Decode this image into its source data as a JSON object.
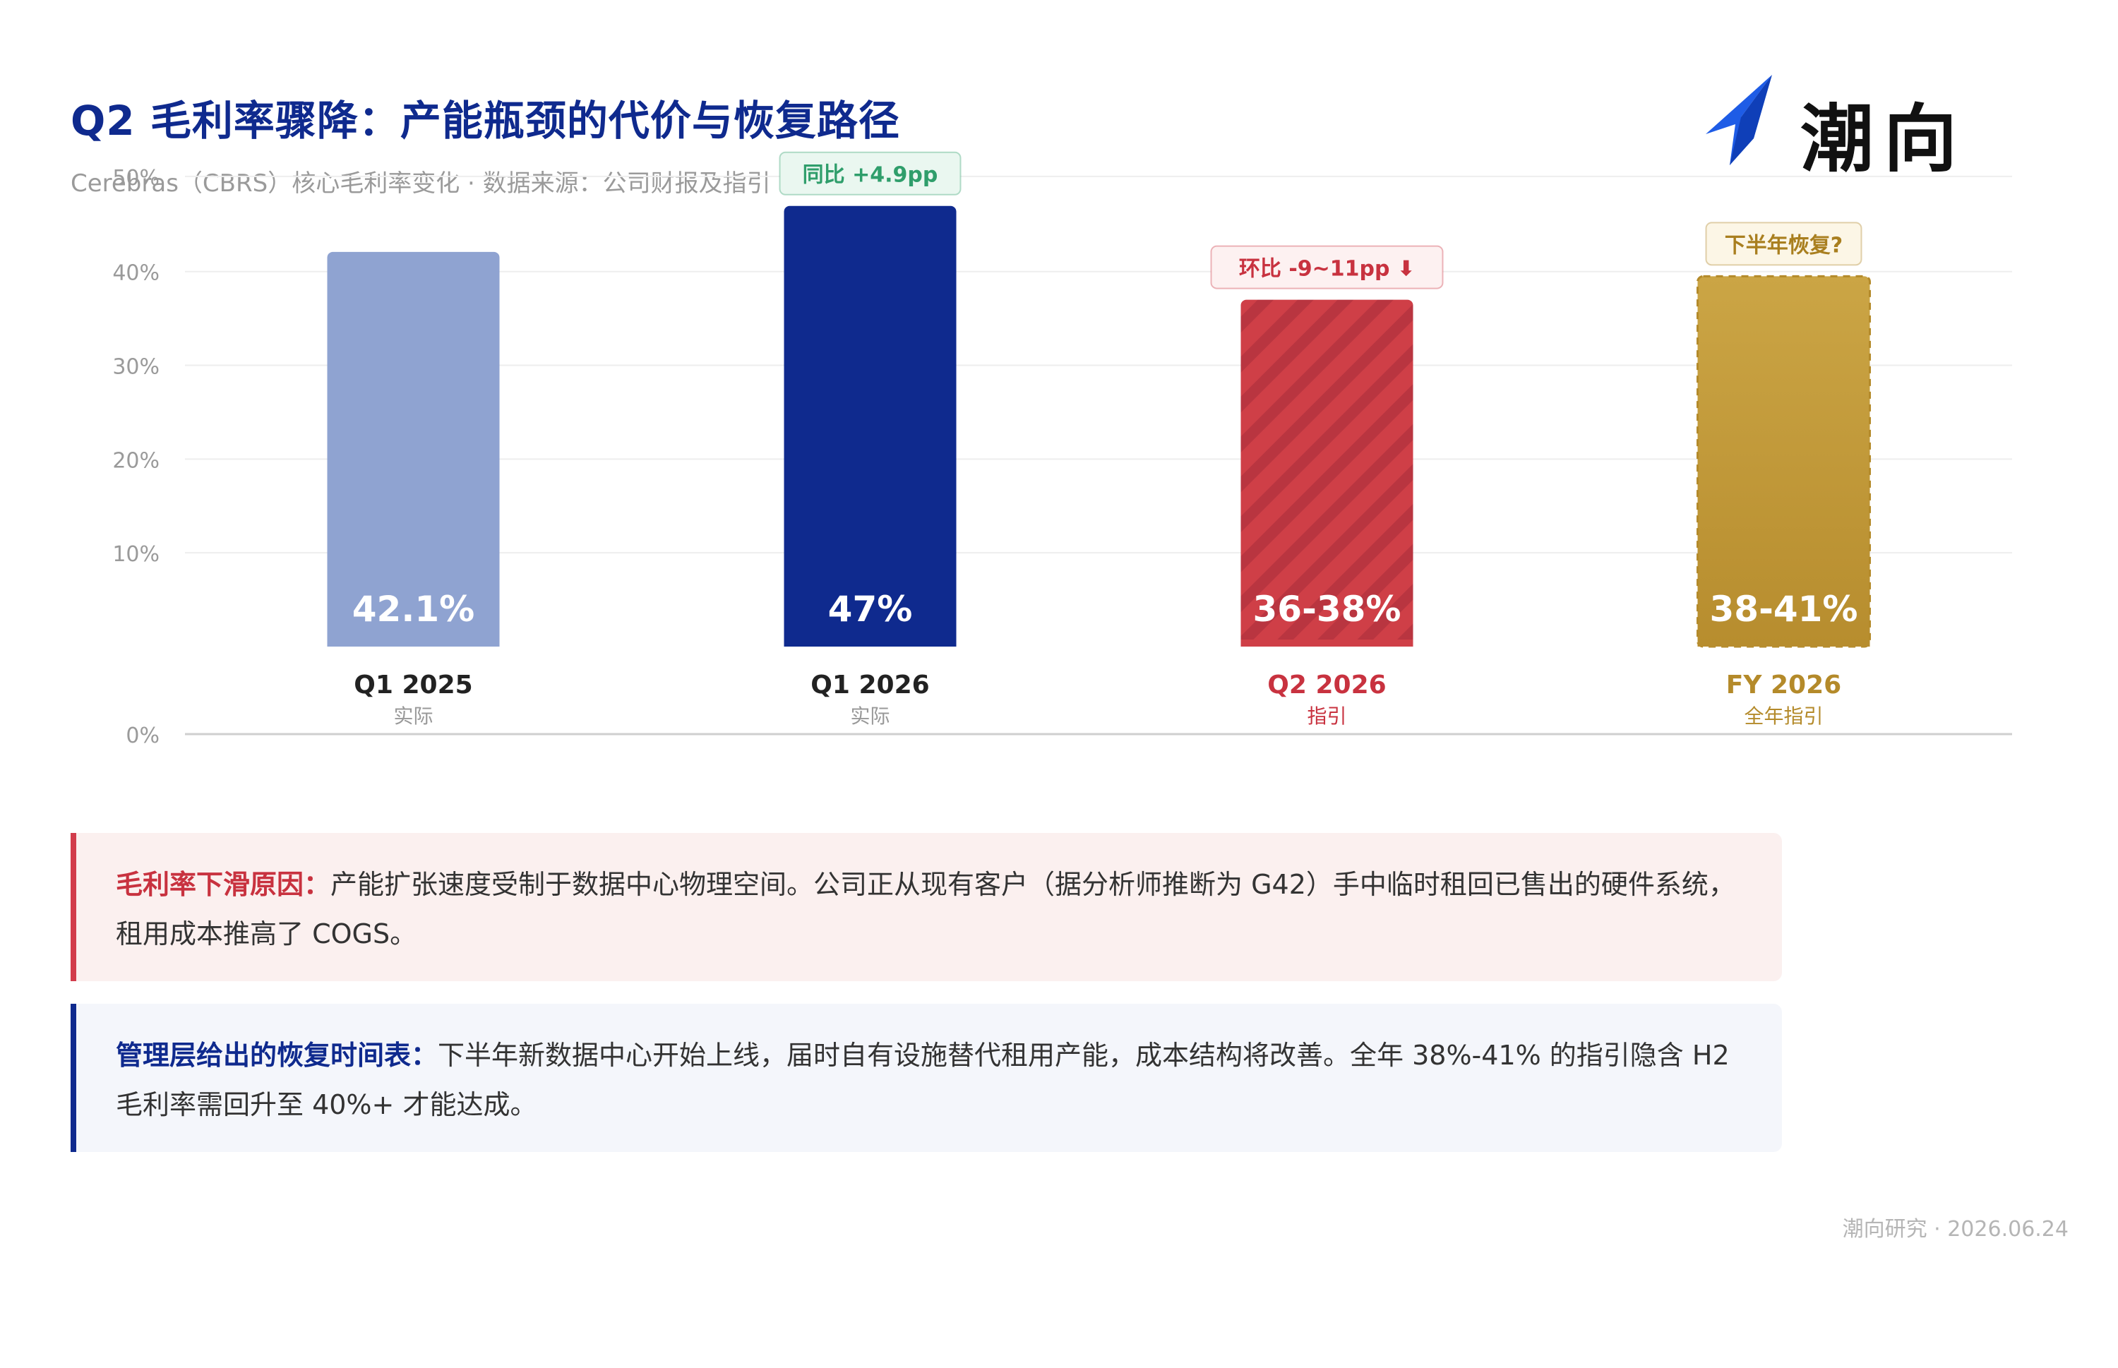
{
  "header": {
    "title": "Q2 毛利率骤降：产能瓶颈的代价与恢复路径",
    "subtitle": "Cerebras（CBRS）核心毛利率变化 · 数据来源：公司财报及指引"
  },
  "brand": {
    "name": "潮向",
    "color": "#1e5ce6",
    "icon": "arrow-logo-icon"
  },
  "chart_data": {
    "type": "bar",
    "ylim": [
      0,
      50
    ],
    "yticks": [
      "0%",
      "10%",
      "20%",
      "30%",
      "40%",
      "50%"
    ],
    "grid": true,
    "categories": [
      {
        "label": "Q1 2025",
        "sub": "实际",
        "value": 42.1,
        "value_label": "42.1%",
        "color": "#8fa3d1",
        "label_color": "#222222",
        "sub_color": "#999999",
        "style": "solid",
        "badge": null
      },
      {
        "label": "Q1 2026",
        "sub": "实际",
        "value": 47,
        "value_label": "47%",
        "color": "#0f2a8e",
        "label_color": "#222222",
        "sub_color": "#999999",
        "style": "solid",
        "badge": {
          "text": "同比 +4.9pp",
          "color": "#2f9e6b",
          "bg": "#eaf7f0"
        }
      },
      {
        "label": "Q2 2026",
        "sub": "指引",
        "value": 37,
        "value_label": "36-38%",
        "color": "#cf3f47",
        "label_color": "#c8323f",
        "sub_color": "#c8323f",
        "style": "striped",
        "badge": {
          "text": "环比 -9~11pp ⬇",
          "color": "#c8323f",
          "bg": "#fdf1f1"
        }
      },
      {
        "label": "FY 2026",
        "sub": "全年指引",
        "value": 39.5,
        "value_label": "38-41%",
        "color": "#c9a23e",
        "label_color": "#b48a2a",
        "sub_color": "#b48a2a",
        "style": "gradient",
        "badge": {
          "text": "下半年恢复?",
          "color": "#a97f1f",
          "bg": "#fcf6e6"
        }
      }
    ]
  },
  "notes": {
    "reason": {
      "label": "毛利率下滑原因：",
      "text": "产能扩张速度受制于数据中心物理空间。公司正从现有客户（据分析师推断为 G42）手中临时租回已售出的硬件系统，租用成本推高了 COGS。"
    },
    "recovery": {
      "label": "管理层给出的恢复时间表：",
      "text": "下半年新数据中心开始上线，届时自有设施替代租用产能，成本结构将改善。全年 38%-41% 的指引隐含 H2 毛利率需回升至 40%+ 才能达成。"
    }
  },
  "footer": {
    "text": "潮向研究 · 2026.06.24"
  }
}
